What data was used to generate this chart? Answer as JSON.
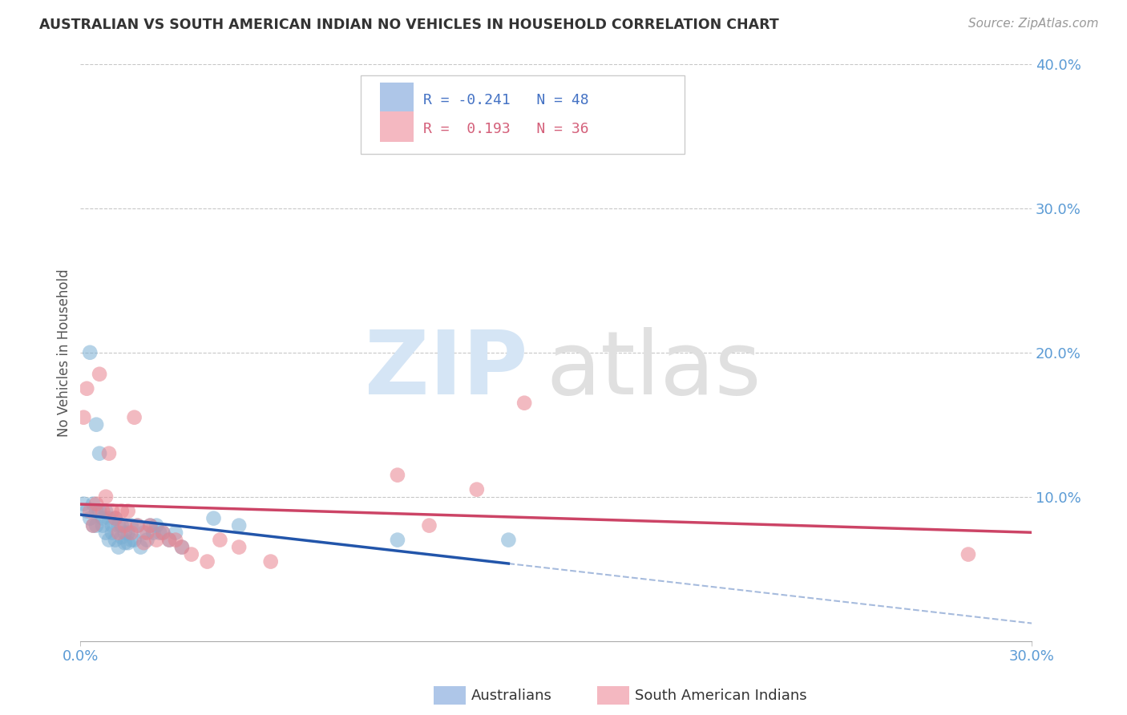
{
  "title": "AUSTRALIAN VS SOUTH AMERICAN INDIAN NO VEHICLES IN HOUSEHOLD CORRELATION CHART",
  "source": "Source: ZipAtlas.com",
  "ylabel": "No Vehicles in Household",
  "xlim": [
    0.0,
    0.3
  ],
  "ylim": [
    0.0,
    0.4
  ],
  "xtick_vals": [
    0.0,
    0.3
  ],
  "xtick_labels": [
    "0.0%",
    "30.0%"
  ],
  "ytick_vals": [
    0.1,
    0.2,
    0.3,
    0.4
  ],
  "ytick_labels": [
    "10.0%",
    "20.0%",
    "30.0%",
    "40.0%"
  ],
  "australians_color": "#7bafd4",
  "south_american_color": "#e8828e",
  "aus_scatter_alpha": 0.55,
  "sam_scatter_alpha": 0.55,
  "scatter_size": 180,
  "background_color": "#ffffff",
  "grid_color": "#c8c8c8",
  "aus_line_color": "#2255aa",
  "sam_line_color": "#cc4466",
  "watermark_zip_color": "#d5e5f5",
  "watermark_atlas_color": "#e0e0e0",
  "legend_box_color": "#aec6e8",
  "legend_pink_color": "#f4b8c1",
  "legend_text_color_blue": "#4472c4",
  "legend_text_color_pink": "#d4607a",
  "tick_color": "#5b9bd5",
  "aus_R": -0.241,
  "aus_N": 48,
  "sam_R": 0.193,
  "sam_N": 36,
  "aus_scatter_x": [
    0.001,
    0.002,
    0.003,
    0.003,
    0.004,
    0.004,
    0.005,
    0.005,
    0.005,
    0.006,
    0.006,
    0.007,
    0.007,
    0.008,
    0.008,
    0.009,
    0.009,
    0.01,
    0.01,
    0.011,
    0.011,
    0.012,
    0.012,
    0.013,
    0.013,
    0.014,
    0.014,
    0.015,
    0.015,
    0.016,
    0.016,
    0.017,
    0.018,
    0.019,
    0.02,
    0.021,
    0.022,
    0.023,
    0.024,
    0.025,
    0.026,
    0.028,
    0.03,
    0.032,
    0.042,
    0.05,
    0.1,
    0.135
  ],
  "aus_scatter_y": [
    0.095,
    0.09,
    0.2,
    0.085,
    0.095,
    0.08,
    0.15,
    0.09,
    0.08,
    0.13,
    0.09,
    0.085,
    0.08,
    0.09,
    0.075,
    0.085,
    0.07,
    0.08,
    0.075,
    0.085,
    0.07,
    0.08,
    0.065,
    0.08,
    0.072,
    0.075,
    0.068,
    0.075,
    0.068,
    0.08,
    0.07,
    0.07,
    0.08,
    0.065,
    0.075,
    0.07,
    0.08,
    0.075,
    0.08,
    0.075,
    0.075,
    0.07,
    0.075,
    0.065,
    0.085,
    0.08,
    0.07,
    0.07
  ],
  "sam_scatter_x": [
    0.001,
    0.002,
    0.003,
    0.004,
    0.005,
    0.006,
    0.007,
    0.008,
    0.009,
    0.01,
    0.011,
    0.012,
    0.013,
    0.014,
    0.015,
    0.016,
    0.017,
    0.018,
    0.02,
    0.021,
    0.022,
    0.024,
    0.026,
    0.028,
    0.03,
    0.032,
    0.035,
    0.04,
    0.044,
    0.05,
    0.06,
    0.1,
    0.11,
    0.125,
    0.14,
    0.28
  ],
  "sam_scatter_y": [
    0.155,
    0.175,
    0.09,
    0.08,
    0.095,
    0.185,
    0.09,
    0.1,
    0.13,
    0.09,
    0.085,
    0.075,
    0.09,
    0.08,
    0.09,
    0.075,
    0.155,
    0.08,
    0.068,
    0.075,
    0.08,
    0.07,
    0.075,
    0.07,
    0.07,
    0.065,
    0.06,
    0.055,
    0.07,
    0.065,
    0.055,
    0.115,
    0.08,
    0.105,
    0.165,
    0.06
  ]
}
